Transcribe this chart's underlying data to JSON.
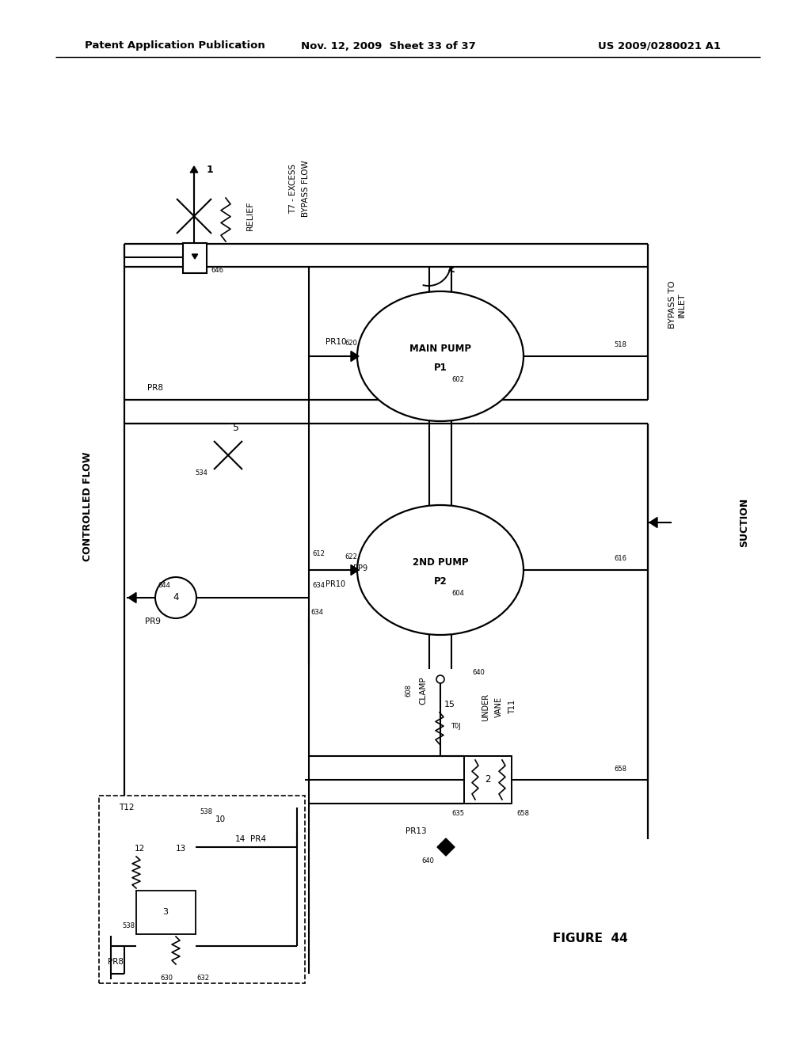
{
  "bg": "#ffffff",
  "header_left": "Patent Application Publication",
  "header_mid": "Nov. 12, 2009  Sheet 33 of 37",
  "header_right": "US 2009/0280021 A1",
  "figure_label": "FIGURE  44"
}
